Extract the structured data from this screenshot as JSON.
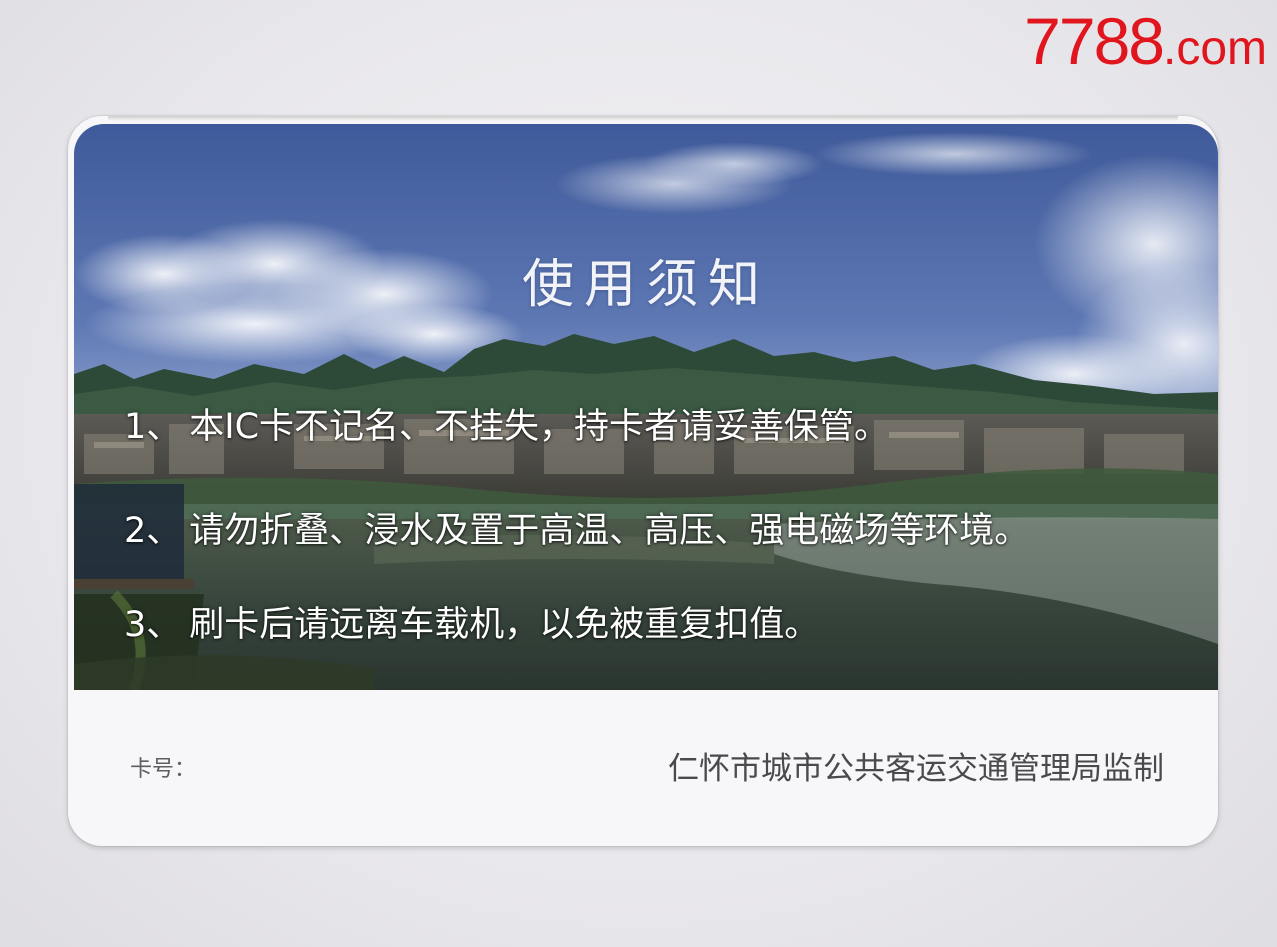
{
  "watermark": {
    "number": "7788",
    "domain": ".com",
    "color": "#e0151d"
  },
  "card": {
    "title": "使用须知",
    "rules": [
      {
        "num": "1、",
        "text": "本IC卡不记名、不挂失，持卡者请妥善保管。"
      },
      {
        "num": "2、",
        "text": "请勿折叠、浸水及置于高温、高压、强电磁场等环境。"
      },
      {
        "num": "3、",
        "text": "刷卡后请远离车载机，以免被重复扣值。"
      }
    ],
    "card_number_label": "卡号：",
    "issuer": "仁怀市城市公共客运交通管理局监制"
  }
}
